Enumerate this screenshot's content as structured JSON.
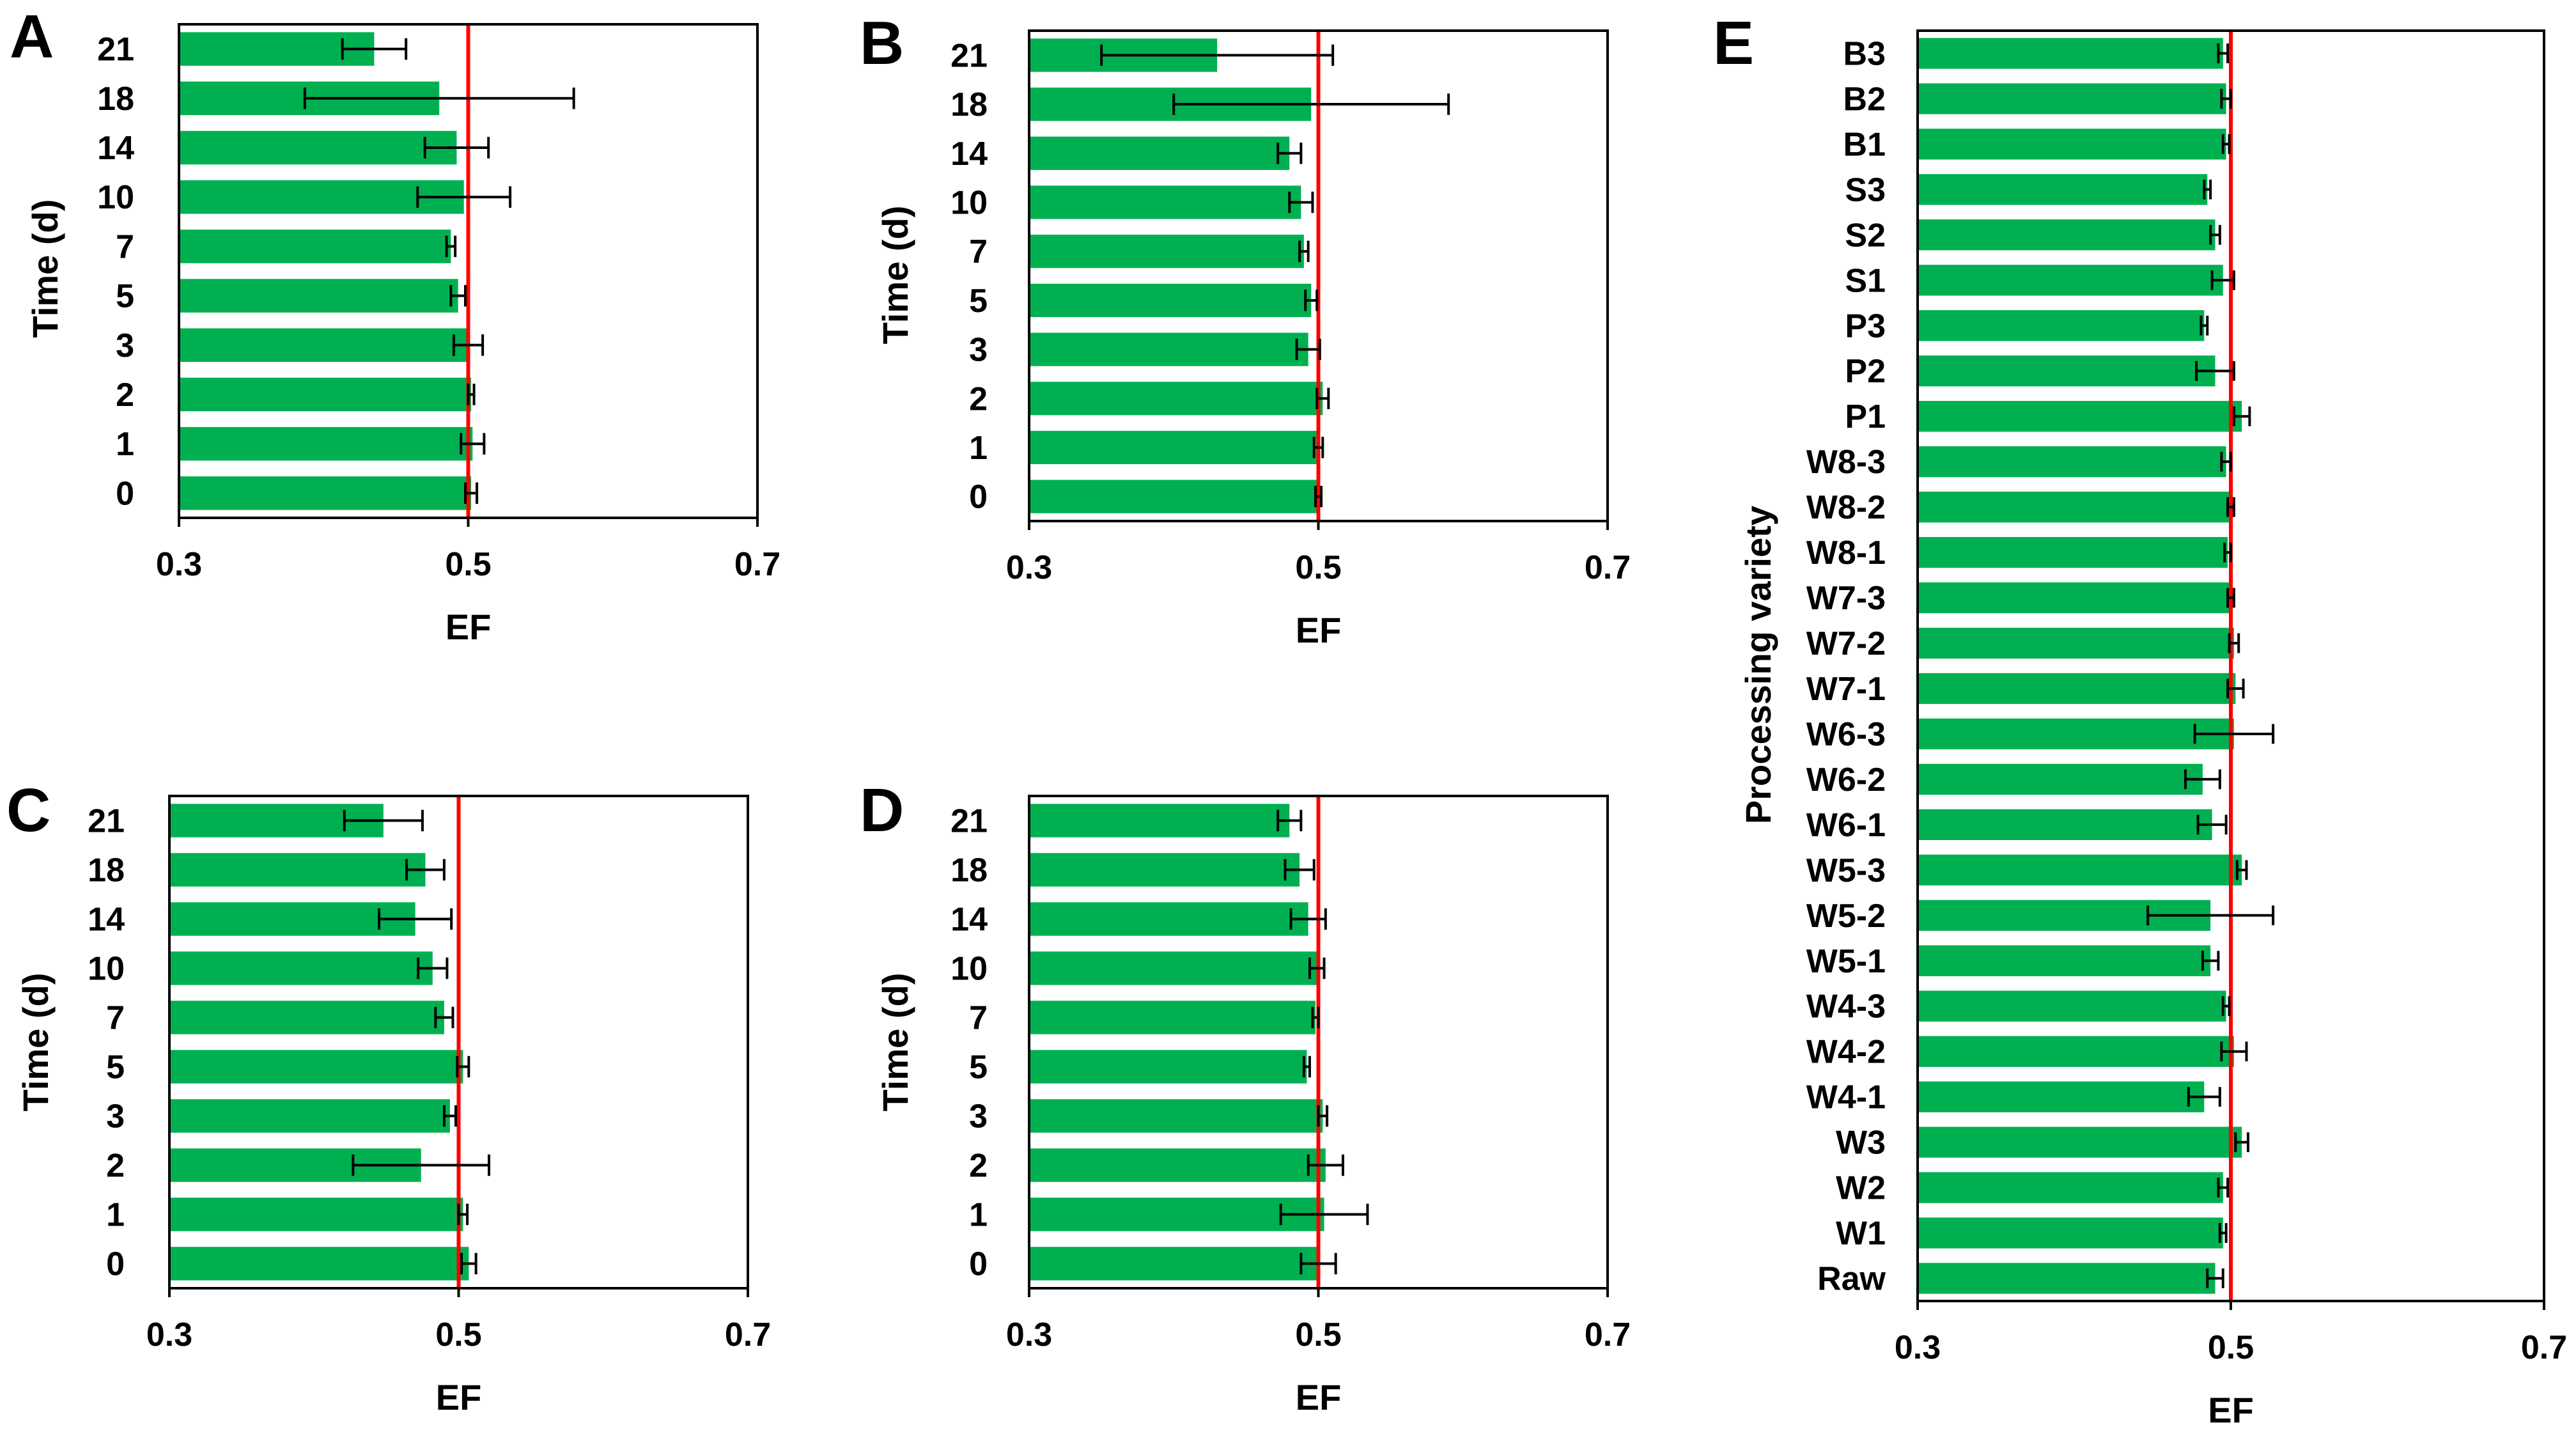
{
  "colors": {
    "bar": "#00b050",
    "reference_line": "#ff0000",
    "error_bar": "#000000",
    "frame": "#000000"
  },
  "chart_data": [
    {
      "panel": "A",
      "type": "bar",
      "orientation": "horizontal",
      "title": "",
      "xlabel": "EF",
      "ylabel": "Time (d)",
      "xlim": [
        0.3,
        0.7
      ],
      "xticks": [
        0.3,
        0.5,
        0.7
      ],
      "xtick_labels": [
        "0.3",
        "0.5",
        "0.7"
      ],
      "reference_line": 0.5,
      "categories": [
        "21",
        "18",
        "14",
        "10",
        "7",
        "5",
        "3",
        "2",
        "1",
        "0"
      ],
      "values": [
        0.435,
        0.48,
        0.492,
        0.497,
        0.488,
        0.493,
        0.5,
        0.502,
        0.503,
        0.502
      ],
      "errors": [
        0.022,
        0.093,
        0.022,
        0.032,
        0.003,
        0.005,
        0.01,
        0.002,
        0.008,
        0.004
      ]
    },
    {
      "panel": "B",
      "type": "bar",
      "orientation": "horizontal",
      "title": "",
      "xlabel": "EF",
      "ylabel": "Time (d)",
      "xlim": [
        0.3,
        0.7
      ],
      "xticks": [
        0.3,
        0.5,
        0.7
      ],
      "xtick_labels": [
        "0.3",
        "0.5",
        "0.7"
      ],
      "reference_line": 0.5,
      "categories": [
        "21",
        "18",
        "14",
        "10",
        "7",
        "5",
        "3",
        "2",
        "1",
        "0"
      ],
      "values": [
        0.43,
        0.495,
        0.48,
        0.488,
        0.49,
        0.495,
        0.493,
        0.503,
        0.5,
        0.5
      ],
      "errors": [
        0.08,
        0.095,
        0.008,
        0.008,
        0.003,
        0.004,
        0.008,
        0.004,
        0.003,
        0.002
      ]
    },
    {
      "panel": "C",
      "type": "bar",
      "orientation": "horizontal",
      "title": "",
      "xlabel": "EF",
      "ylabel": "Time (d)",
      "xlim": [
        0.3,
        0.7
      ],
      "xticks": [
        0.3,
        0.5,
        0.7
      ],
      "xtick_labels": [
        "0.3",
        "0.5",
        "0.7"
      ],
      "reference_line": 0.5,
      "categories": [
        "21",
        "18",
        "14",
        "10",
        "7",
        "5",
        "3",
        "2",
        "1",
        "0"
      ],
      "values": [
        0.448,
        0.477,
        0.47,
        0.482,
        0.49,
        0.503,
        0.494,
        0.474,
        0.503,
        0.507
      ],
      "errors": [
        0.027,
        0.013,
        0.025,
        0.01,
        0.006,
        0.004,
        0.004,
        0.047,
        0.003,
        0.005
      ]
    },
    {
      "panel": "D",
      "type": "bar",
      "orientation": "horizontal",
      "title": "",
      "xlabel": "EF",
      "ylabel": "Time (d)",
      "xlim": [
        0.3,
        0.7
      ],
      "xticks": [
        0.3,
        0.5,
        0.7
      ],
      "xtick_labels": [
        "0.3",
        "0.5",
        "0.7"
      ],
      "reference_line": 0.5,
      "categories": [
        "21",
        "18",
        "14",
        "10",
        "7",
        "5",
        "3",
        "2",
        "1",
        "0"
      ],
      "values": [
        0.48,
        0.487,
        0.493,
        0.499,
        0.498,
        0.492,
        0.503,
        0.505,
        0.504,
        0.5
      ],
      "errors": [
        0.008,
        0.01,
        0.012,
        0.005,
        0.002,
        0.002,
        0.003,
        0.012,
        0.03,
        0.012
      ]
    },
    {
      "panel": "E",
      "type": "bar",
      "orientation": "horizontal",
      "title": "",
      "xlabel": "EF",
      "ylabel": "Processing variety",
      "xlim": [
        0.3,
        0.7
      ],
      "xticks": [
        0.3,
        0.5,
        0.7
      ],
      "xtick_labels": [
        "0.3",
        "0.5",
        "0.7"
      ],
      "reference_line": 0.5,
      "categories": [
        "B3",
        "B2",
        "B1",
        "S3",
        "S2",
        "S1",
        "P3",
        "P2",
        "P1",
        "W8-3",
        "W8-2",
        "W8-1",
        "W7-3",
        "W7-2",
        "W7-1",
        "W6-3",
        "W6-2",
        "W6-1",
        "W5-3",
        "W5-2",
        "W5-1",
        "W4-3",
        "W4-2",
        "W4-1",
        "W3",
        "W2",
        "W1",
        "Raw"
      ],
      "values": [
        0.495,
        0.497,
        0.497,
        0.485,
        0.49,
        0.495,
        0.483,
        0.49,
        0.507,
        0.497,
        0.5,
        0.498,
        0.5,
        0.502,
        0.503,
        0.502,
        0.482,
        0.488,
        0.507,
        0.487,
        0.487,
        0.497,
        0.502,
        0.483,
        0.507,
        0.495,
        0.495,
        0.49
      ],
      "errors": [
        0.003,
        0.003,
        0.002,
        0.002,
        0.003,
        0.007,
        0.002,
        0.012,
        0.005,
        0.003,
        0.002,
        0.002,
        0.002,
        0.003,
        0.005,
        0.025,
        0.011,
        0.009,
        0.003,
        0.04,
        0.005,
        0.002,
        0.008,
        0.01,
        0.004,
        0.003,
        0.002,
        0.005
      ]
    }
  ]
}
